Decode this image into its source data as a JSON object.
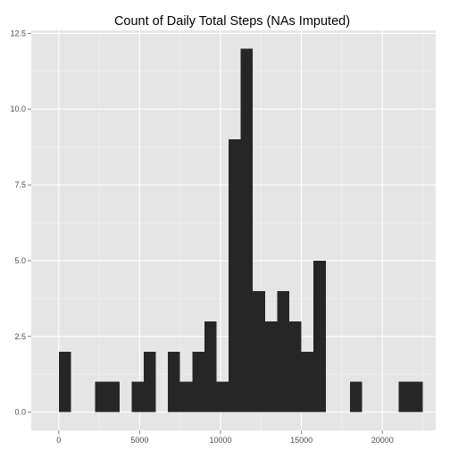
{
  "chart_data": {
    "type": "bar",
    "title": "Count of Daily Total Steps (NAs Imputed)",
    "xlabel": "",
    "ylabel": "",
    "binwidth": 750,
    "xlim": [
      -1700,
      23300
    ],
    "ylim": [
      -0.6,
      12.6
    ],
    "x_ticks": [
      0,
      5000,
      10000,
      15000,
      20000
    ],
    "x_tick_labels": [
      "0",
      "5000",
      "10000",
      "15000",
      "20000"
    ],
    "y_ticks": [
      0,
      2.5,
      5,
      7.5,
      10,
      12.5
    ],
    "y_tick_labels": [
      "0.0",
      "2.5",
      "5.0",
      "7.5",
      "10.0",
      "12.5"
    ],
    "bins": [
      {
        "start": 0,
        "end": 750,
        "count": 2
      },
      {
        "start": 750,
        "end": 1500,
        "count": 0
      },
      {
        "start": 1500,
        "end": 2250,
        "count": 0
      },
      {
        "start": 2250,
        "end": 3000,
        "count": 1
      },
      {
        "start": 3000,
        "end": 3750,
        "count": 1
      },
      {
        "start": 3750,
        "end": 4500,
        "count": 0
      },
      {
        "start": 4500,
        "end": 5250,
        "count": 1
      },
      {
        "start": 5250,
        "end": 6000,
        "count": 2
      },
      {
        "start": 6000,
        "end": 6750,
        "count": 0
      },
      {
        "start": 6750,
        "end": 7500,
        "count": 2
      },
      {
        "start": 7500,
        "end": 8250,
        "count": 1
      },
      {
        "start": 8250,
        "end": 9000,
        "count": 2
      },
      {
        "start": 9000,
        "end": 9750,
        "count": 3
      },
      {
        "start": 9750,
        "end": 10500,
        "count": 1
      },
      {
        "start": 10500,
        "end": 11250,
        "count": 9
      },
      {
        "start": 11250,
        "end": 12000,
        "count": 12
      },
      {
        "start": 12000,
        "end": 12750,
        "count": 4
      },
      {
        "start": 12750,
        "end": 13500,
        "count": 3
      },
      {
        "start": 13500,
        "end": 14250,
        "count": 4
      },
      {
        "start": 14250,
        "end": 15000,
        "count": 3
      },
      {
        "start": 15000,
        "end": 15750,
        "count": 2
      },
      {
        "start": 15750,
        "end": 16500,
        "count": 5
      },
      {
        "start": 16500,
        "end": 17250,
        "count": 0
      },
      {
        "start": 17250,
        "end": 18000,
        "count": 0
      },
      {
        "start": 18000,
        "end": 18750,
        "count": 1
      },
      {
        "start": 18750,
        "end": 19500,
        "count": 0
      },
      {
        "start": 19500,
        "end": 20250,
        "count": 0
      },
      {
        "start": 20250,
        "end": 21000,
        "count": 0
      },
      {
        "start": 21000,
        "end": 21750,
        "count": 1
      },
      {
        "start": 21750,
        "end": 22500,
        "count": 1
      }
    ],
    "grid": true,
    "legend": "none"
  },
  "colors": {
    "panel_background": "#e5e5e5",
    "major_grid": "#ffffff",
    "minor_grid": "#f2f2f2",
    "bar_fill": "#262626",
    "tick_mark": "#7f7f7f",
    "tick_text": "#4d4d4d",
    "title_text": "#000000"
  }
}
